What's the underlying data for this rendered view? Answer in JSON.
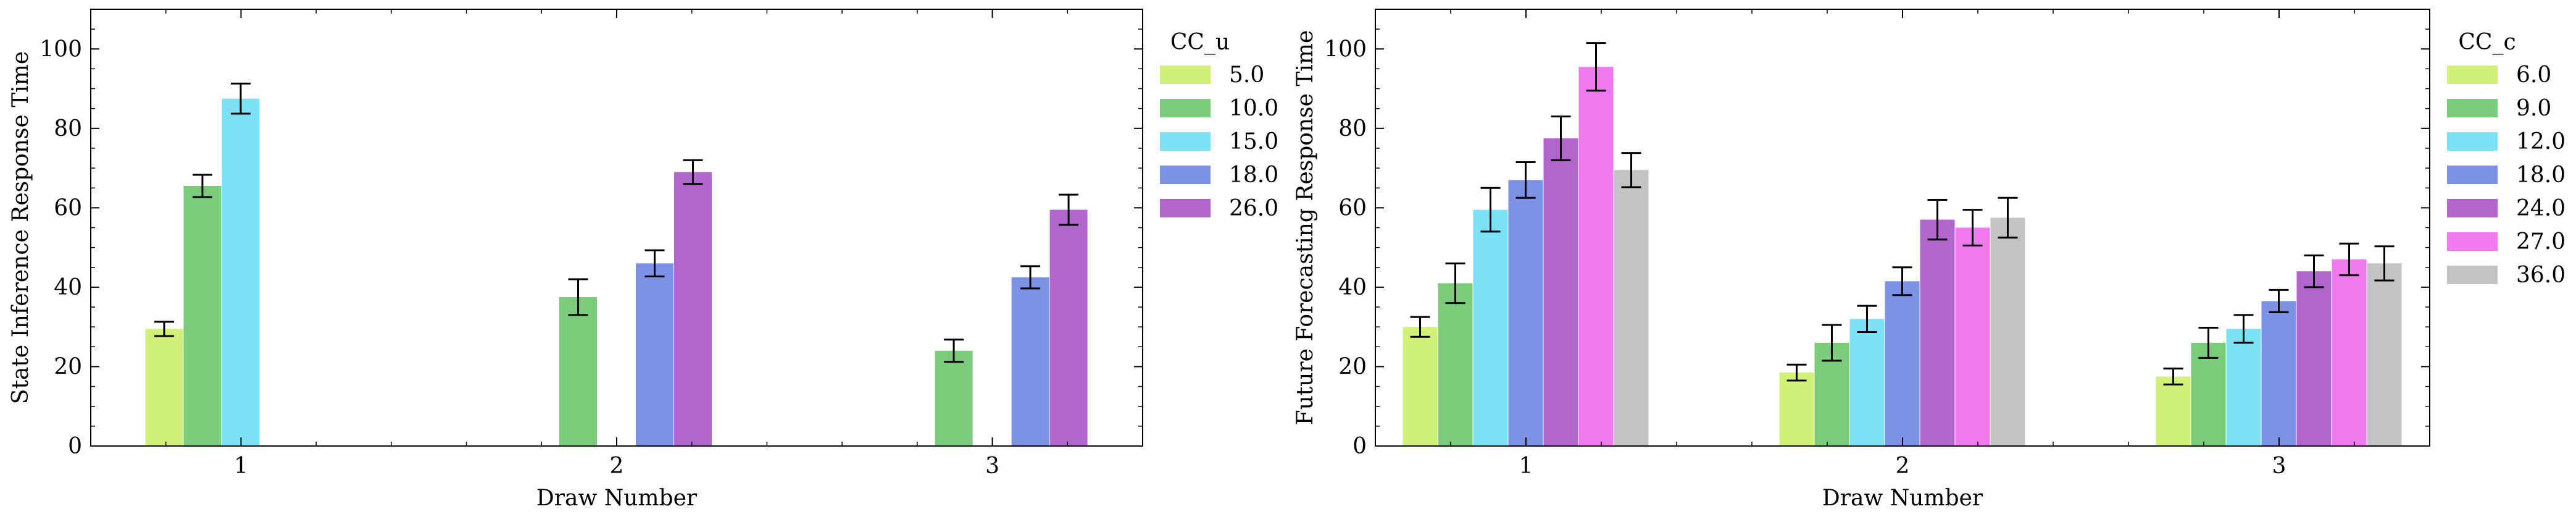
{
  "chart_data": [
    {
      "type": "bar",
      "xlabel": "Draw Number",
      "ylabel": "State Inference Response Time",
      "categories": [
        "1",
        "2",
        "3"
      ],
      "ylim": [
        0,
        110
      ],
      "yticks": [
        0,
        20,
        40,
        60,
        80,
        100
      ],
      "grid": false,
      "legend": {
        "title": "CC_u",
        "position": "outside-right"
      },
      "series": [
        {
          "name": "5.0",
          "color": "#cdf06a",
          "values": [
            29.5,
            null,
            null
          ],
          "errors": [
            1.8,
            null,
            null
          ]
        },
        {
          "name": "10.0",
          "color": "#6cc56c",
          "values": [
            65.5,
            37.5,
            24.0
          ],
          "errors": [
            2.8,
            4.5,
            2.8
          ]
        },
        {
          "name": "15.0",
          "color": "#6fdff6",
          "values": [
            87.5,
            null,
            null
          ],
          "errors": [
            3.8,
            null,
            null
          ]
        },
        {
          "name": "18.0",
          "color": "#6f86e3",
          "values": [
            null,
            46.0,
            42.5
          ],
          "errors": [
            null,
            3.3,
            2.8
          ]
        },
        {
          "name": "26.0",
          "color": "#aa55c8",
          "values": [
            null,
            69.0,
            59.5
          ],
          "errors": [
            null,
            3.0,
            3.8
          ]
        }
      ]
    },
    {
      "type": "bar",
      "xlabel": "Draw Number",
      "ylabel": "Future Forecasting Response Time",
      "categories": [
        "1",
        "2",
        "3"
      ],
      "ylim": [
        0,
        110
      ],
      "yticks": [
        0,
        20,
        40,
        60,
        80,
        100
      ],
      "grid": false,
      "legend": {
        "title": "CC_c",
        "position": "outside-right"
      },
      "series": [
        {
          "name": "6.0",
          "color": "#cdf06a",
          "values": [
            30.0,
            18.5,
            17.5
          ],
          "errors": [
            2.5,
            2.0,
            2.0
          ]
        },
        {
          "name": "9.0",
          "color": "#6cc56c",
          "values": [
            41.0,
            26.0,
            26.0
          ],
          "errors": [
            5.0,
            4.5,
            3.8
          ]
        },
        {
          "name": "12.0",
          "color": "#6fdff6",
          "values": [
            59.5,
            32.0,
            29.5
          ],
          "errors": [
            5.5,
            3.3,
            3.5
          ]
        },
        {
          "name": "18.0",
          "color": "#6f86e3",
          "values": [
            67.0,
            41.5,
            36.5
          ],
          "errors": [
            4.5,
            3.5,
            2.8
          ]
        },
        {
          "name": "24.0",
          "color": "#aa55c8",
          "values": [
            77.5,
            57.0,
            44.0
          ],
          "errors": [
            5.5,
            5.0,
            4.0
          ]
        },
        {
          "name": "27.0",
          "color": "#f06aec",
          "values": [
            95.5,
            55.0,
            47.0
          ],
          "errors": [
            6.0,
            4.5,
            4.0
          ]
        },
        {
          "name": "36.0",
          "color": "#bdbdbd",
          "values": [
            69.5,
            57.5,
            46.0
          ],
          "errors": [
            4.3,
            5.0,
            4.3
          ]
        }
      ]
    }
  ]
}
